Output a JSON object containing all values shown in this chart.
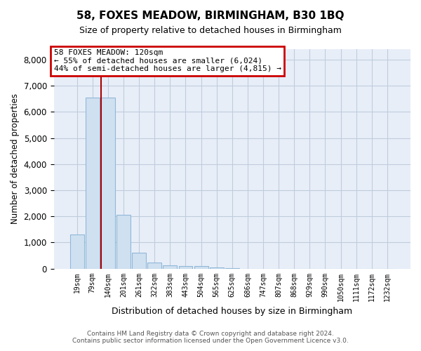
{
  "title": "58, FOXES MEADOW, BIRMINGHAM, B30 1BQ",
  "subtitle": "Size of property relative to detached houses in Birmingham",
  "xlabel": "Distribution of detached houses by size in Birmingham",
  "ylabel": "Number of detached properties",
  "footer_line1": "Contains HM Land Registry data © Crown copyright and database right 2024.",
  "footer_line2": "Contains public sector information licensed under the Open Government Licence v3.0.",
  "annotation_line1": "58 FOXES MEADOW: 120sqm",
  "annotation_line2": "← 55% of detached houses are smaller (6,024)",
  "annotation_line3": "44% of semi-detached houses are larger (4,815) →",
  "bar_color": "#cfe0f0",
  "bar_edge_color": "#90b8d8",
  "vline_color": "#aa0000",
  "annotation_box_edge_color": "#cc0000",
  "background_color": "#ffffff",
  "plot_bg_color": "#e8eef8",
  "grid_color": "#c0ccdd",
  "categories": [
    "19sqm",
    "79sqm",
    "140sqm",
    "201sqm",
    "261sqm",
    "322sqm",
    "383sqm",
    "443sqm",
    "504sqm",
    "565sqm",
    "625sqm",
    "686sqm",
    "747sqm",
    "807sqm",
    "868sqm",
    "929sqm",
    "990sqm",
    "1050sqm",
    "1111sqm",
    "1172sqm",
    "1232sqm"
  ],
  "values": [
    1300,
    6550,
    6550,
    2050,
    600,
    240,
    130,
    100,
    90,
    45,
    15,
    4,
    3,
    2,
    1,
    1,
    0,
    0,
    0,
    0,
    0
  ],
  "vline_x_index": 1.55,
  "ylim": [
    0,
    8400
  ],
  "yticks": [
    0,
    1000,
    2000,
    3000,
    4000,
    5000,
    6000,
    7000,
    8000
  ]
}
